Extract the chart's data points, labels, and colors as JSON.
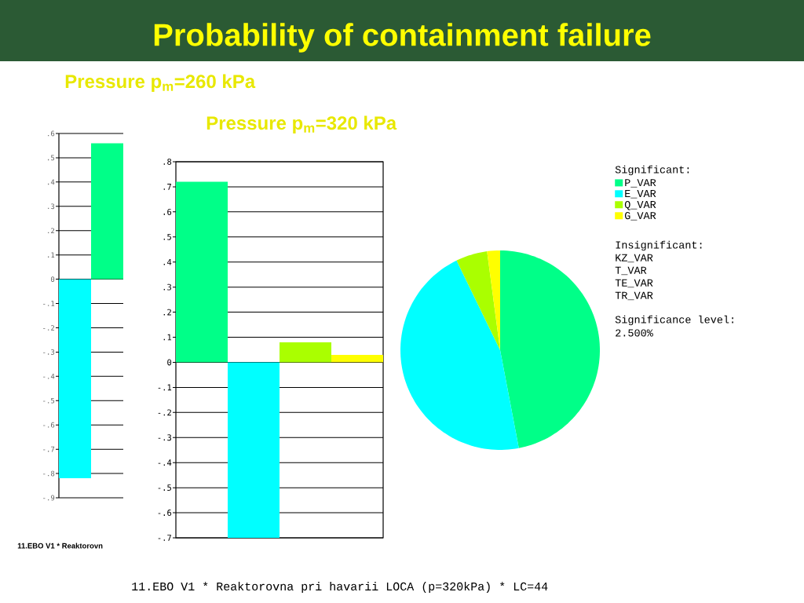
{
  "chart_data": [
    {
      "type": "bar",
      "title": "Pressure p$_{m}$=260 kPa",
      "categories": [
        null,
        null
      ],
      "values": [
        -0.82,
        0.56
      ],
      "colors": [
        "#00ffff",
        "#00ff88"
      ],
      "ylim": [
        -0.9,
        0.6
      ],
      "yticks": [
        {
          "value": 0.6,
          "label": ".6"
        },
        {
          "value": 0.5,
          "label": ".5"
        },
        {
          "value": 0.4,
          "label": ".4"
        },
        {
          "value": 0.3,
          "label": ".3"
        },
        {
          "value": 0.2,
          "label": ".2"
        },
        {
          "value": 0.1,
          "label": ".1"
        },
        0,
        {
          "value": -0.1,
          "label": "-.1"
        },
        {
          "value": -0.2,
          "label": "-.2"
        },
        {
          "value": -0.3,
          "label": "-.3"
        },
        {
          "value": -0.4,
          "label": "-.4"
        },
        {
          "value": -0.5,
          "label": "-.5"
        },
        {
          "value": -0.6,
          "label": "-.6"
        },
        {
          "value": -0.7,
          "label": "-.7"
        },
        {
          "value": -0.8,
          "label": "-.8"
        },
        {
          "value": -0.9,
          "label": "-.9"
        }
      ],
      "grid": "y",
      "annotations": [
        "11.EBO V1 * Reaktorovn"
      ]
    },
    {
      "type": "bar",
      "title": "Probability of containment failure",
      "subtitle": "Pressure p$_{m}$=320 kPa",
      "categories": [
        null,
        null,
        null,
        null
      ],
      "values": [
        0.72,
        -0.7,
        0.08,
        0.03
      ],
      "colors": [
        "#00ff88",
        "#00ffff",
        "#aaff00",
        "#ffff00"
      ],
      "ylim": [
        -0.7,
        0.8
      ],
      "yticks": [
        {
          "value": 0.8,
          "label": ".8"
        },
        {
          "value": 0.7,
          "label": ".7"
        },
        {
          "value": 0.6,
          "label": ".6"
        },
        {
          "value": 0.5,
          "label": ".5"
        },
        {
          "value": 0.4,
          "label": ".4"
        },
        {
          "value": 0.3,
          "label": ".3"
        },
        {
          "value": 0.2,
          "label": ".2"
        },
        {
          "value": 0.1,
          "label": ".1"
        },
        0,
        {
          "value": -0.1,
          "label": "-.1"
        },
        {
          "value": -0.2,
          "label": "-.2"
        },
        {
          "value": -0.3,
          "label": "-.3"
        },
        {
          "value": -0.4,
          "label": "-.4"
        },
        {
          "value": -0.5,
          "label": "-.5"
        },
        {
          "value": -0.6,
          "label": "-.6"
        },
        {
          "value": -0.7,
          "label": "-.7"
        }
      ],
      "grid": "y",
      "annotations": [
        "11.EBO V1 * Reaktorovna pri havarii LOCA (p=320kPa) * LC=44"
      ]
    },
    {
      "type": "pie",
      "categories": [
        "P_VAR",
        "E_VAR",
        "Q_VAR",
        "G_VAR"
      ],
      "values": [
        47,
        45.8,
        5.1,
        2.1
      ],
      "colors": [
        "#00ff88",
        "#00ffff",
        "#aaff00",
        "#ffff00"
      ],
      "legend": "right",
      "legend_title": "Significant:",
      "annotations": [
        "Insignificant:",
        "KZ_VAR",
        "T_VAR",
        "TE_VAR",
        "TR_VAR",
        "Significance level:",
        "2.500%"
      ]
    }
  ]
}
